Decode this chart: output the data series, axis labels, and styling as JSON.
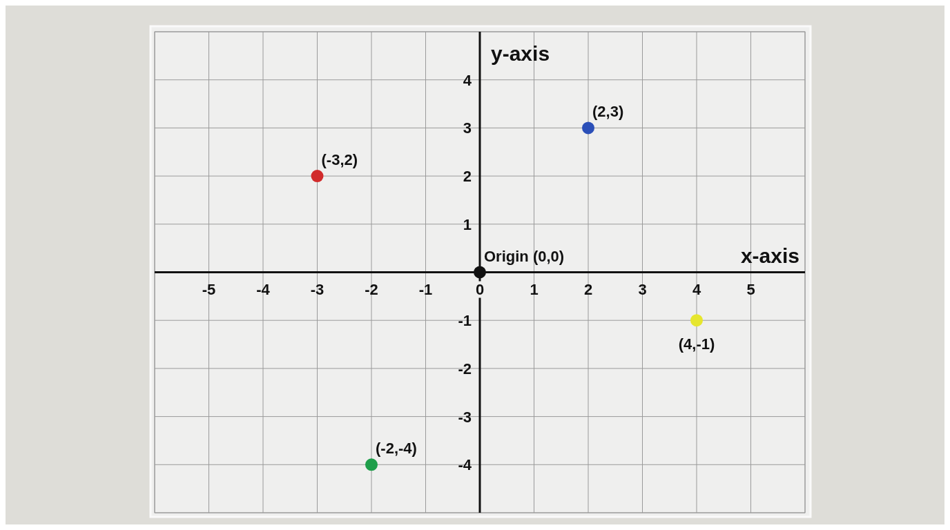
{
  "chart_data": {
    "type": "scatter",
    "xlabel": "x-axis",
    "ylabel": "y-axis",
    "x": [
      0,
      -3,
      2,
      4,
      -2
    ],
    "values": [
      0,
      2,
      3,
      -1,
      -4
    ],
    "colors": [
      "#111111",
      "#d12b2b",
      "#2b4fb8",
      "#e6e62e",
      "#1f9e4a"
    ],
    "xlim": [
      -6,
      6
    ],
    "ylim": [
      -5,
      5
    ],
    "xticks": [
      -5,
      -4,
      -3,
      -2,
      -1,
      0,
      1,
      2,
      3,
      4,
      5
    ],
    "yticks": [
      -4,
      -3,
      -2,
      -1,
      1,
      2,
      3,
      4
    ],
    "grid": true,
    "marker": "circle",
    "annotations": [
      {
        "text": "Origin (0,0)",
        "x": 0,
        "y": 0
      },
      {
        "text": "(-3,2)",
        "x": -3,
        "y": 2
      },
      {
        "text": "(2,3)",
        "x": 2,
        "y": 3
      },
      {
        "text": "(4,-1)",
        "x": 4,
        "y": -1
      },
      {
        "text": "(-2,-4)",
        "x": -2,
        "y": -4
      }
    ]
  }
}
